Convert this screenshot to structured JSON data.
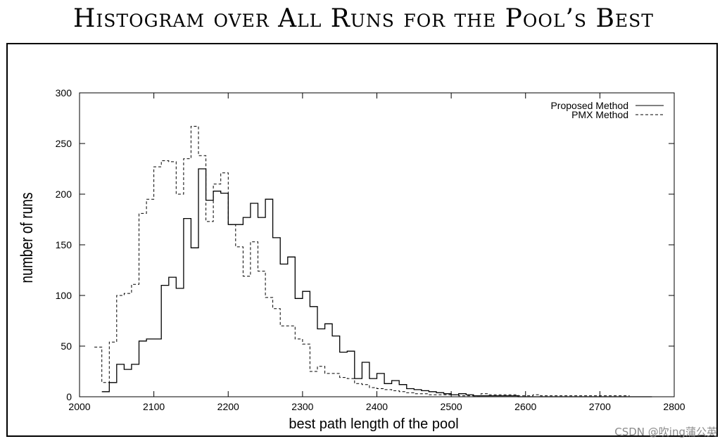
{
  "watermark": "CSDN @吹ing蒲公英",
  "chart_data": {
    "type": "line",
    "title": "Histogram over All Runs for the Pool’s Best",
    "xlabel": "best path length of the pool",
    "ylabel": "number of runs",
    "xlim": [
      2000,
      2800
    ],
    "ylim": [
      0,
      300
    ],
    "xticks": [
      2000,
      2100,
      2200,
      2300,
      2400,
      2500,
      2600,
      2700,
      2800
    ],
    "yticks": [
      0,
      50,
      100,
      150,
      200,
      250,
      300
    ],
    "grid": false,
    "legend_position": "top-right",
    "series": [
      {
        "name": "Proposed Method",
        "style": "solid",
        "color": "#000000",
        "x": [
          2030,
          2040,
          2050,
          2060,
          2070,
          2080,
          2090,
          2100,
          2110,
          2120,
          2130,
          2140,
          2150,
          2160,
          2170,
          2180,
          2190,
          2200,
          2210,
          2220,
          2230,
          2240,
          2250,
          2260,
          2270,
          2280,
          2290,
          2300,
          2310,
          2320,
          2330,
          2340,
          2350,
          2360,
          2370,
          2380,
          2390,
          2400,
          2410,
          2420,
          2430,
          2440,
          2450,
          2460,
          2470,
          2480,
          2490,
          2500,
          2510,
          2520,
          2530,
          2540,
          2550,
          2560,
          2570,
          2580,
          2590,
          2600,
          2610,
          2620,
          2630,
          2640,
          2650,
          2660,
          2670,
          2680,
          2690,
          2700,
          2710,
          2720,
          2730,
          2740,
          2750,
          2760
        ],
        "y": [
          5,
          14,
          32,
          27,
          32,
          55,
          57,
          57,
          110,
          118,
          107,
          176,
          147,
          225,
          194,
          203,
          201,
          170,
          170,
          177,
          191,
          177,
          195,
          157,
          131,
          138,
          97,
          104,
          89,
          67,
          72,
          60,
          44,
          45,
          18,
          34,
          18,
          23,
          13,
          16,
          12,
          8,
          7,
          6,
          5,
          4,
          3,
          2,
          3,
          2,
          1,
          1,
          1,
          1,
          1,
          1,
          0,
          0,
          0,
          0,
          0,
          0,
          0,
          0,
          0,
          0,
          0,
          0,
          0,
          0,
          0,
          0,
          0,
          0
        ]
      },
      {
        "name": "PMX Method",
        "style": "dashed",
        "color": "#000000",
        "x": [
          2020,
          2030,
          2040,
          2050,
          2060,
          2070,
          2080,
          2090,
          2100,
          2110,
          2120,
          2130,
          2140,
          2150,
          2160,
          2170,
          2180,
          2190,
          2200,
          2210,
          2220,
          2230,
          2240,
          2250,
          2260,
          2270,
          2280,
          2290,
          2300,
          2310,
          2320,
          2330,
          2340,
          2350,
          2360,
          2370,
          2380,
          2390,
          2400,
          2410,
          2420,
          2430,
          2440,
          2450,
          2460,
          2470,
          2480,
          2490,
          2500,
          2510,
          2520,
          2530,
          2540,
          2550,
          2560,
          2570,
          2580,
          2590,
          2600,
          2610,
          2620,
          2630,
          2640,
          2650,
          2660,
          2670,
          2680,
          2690,
          2700,
          2710,
          2720,
          2730
        ],
        "y": [
          49,
          14,
          54,
          100,
          102,
          111,
          181,
          195,
          227,
          233,
          232,
          200,
          235,
          267,
          238,
          173,
          210,
          221,
          170,
          148,
          119,
          153,
          124,
          98,
          87,
          70,
          70,
          57,
          52,
          25,
          30,
          23,
          23,
          19,
          18,
          13,
          12,
          9,
          8,
          7,
          6,
          5,
          4,
          3,
          3,
          2,
          2,
          2,
          2,
          1,
          1,
          1,
          3,
          2,
          2,
          2,
          2,
          1,
          1,
          2,
          1,
          1,
          1,
          1,
          1,
          1,
          1,
          1,
          1,
          1,
          1,
          1
        ]
      }
    ]
  }
}
